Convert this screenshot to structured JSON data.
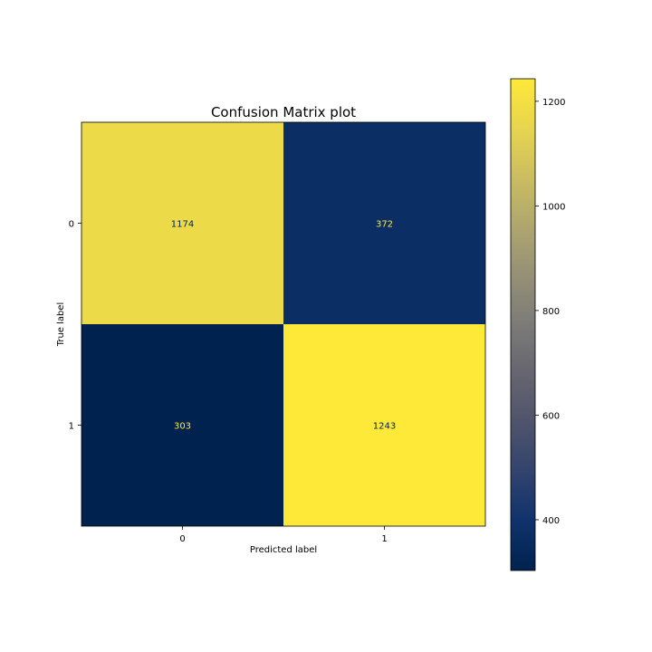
{
  "chart_data": {
    "type": "heatmap",
    "title": "Confusion Matrix plot",
    "xlabel": "Predicted label",
    "ylabel": "True label",
    "x_categories": [
      "0",
      "1"
    ],
    "y_categories": [
      "0",
      "1"
    ],
    "matrix": [
      [
        1174,
        372
      ],
      [
        303,
        1243
      ]
    ],
    "colormap": "cividis",
    "colorbar": {
      "range": [
        303,
        1243
      ],
      "ticks": [
        400,
        600,
        800,
        1000,
        1200
      ]
    },
    "grid": false,
    "colors": {
      "low": "#00224e",
      "mid": "#7c7b78",
      "high": "#fee838",
      "text_on_dark": "#fee838",
      "text_on_light": "#00224e"
    }
  }
}
